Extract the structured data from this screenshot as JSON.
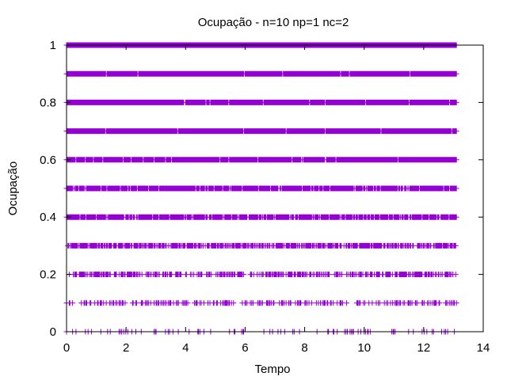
{
  "chart_data": {
    "type": "scatter",
    "title": "Ocupação - n=10 np=1 nc=2",
    "xlabel": "Tempo",
    "ylabel": "Ocupação",
    "xlim": [
      0,
      14
    ],
    "ylim": [
      0,
      1
    ],
    "x_ticks": [
      0,
      2,
      4,
      6,
      8,
      10,
      12,
      14
    ],
    "x_tick_labels": [
      "0",
      "2",
      "4",
      "6",
      "8",
      "10",
      "12",
      "14"
    ],
    "y_ticks": [
      0,
      0.2,
      0.4,
      0.6,
      0.8,
      1
    ],
    "y_tick_labels": [
      "0",
      "0.2",
      "0.4",
      "0.6",
      "0.8",
      "1"
    ],
    "marker": "plus",
    "grid": false,
    "legend": "none",
    "series": [
      {
        "color": "#9400d3",
        "x_range": [
          0,
          13.1
        ],
        "levels": [
          {
            "y": 0.0,
            "density": 0.15
          },
          {
            "y": 0.1,
            "density": 0.35
          },
          {
            "y": 0.2,
            "density": 0.55
          },
          {
            "y": 0.3,
            "density": 0.75
          },
          {
            "y": 0.4,
            "density": 0.88
          },
          {
            "y": 0.5,
            "density": 0.93
          },
          {
            "y": 0.6,
            "density": 0.96
          },
          {
            "y": 0.7,
            "density": 0.98
          },
          {
            "y": 0.8,
            "density": 0.985
          },
          {
            "y": 0.9,
            "density": 0.99
          },
          {
            "y": 1.0,
            "density": 1.0
          }
        ]
      }
    ]
  }
}
